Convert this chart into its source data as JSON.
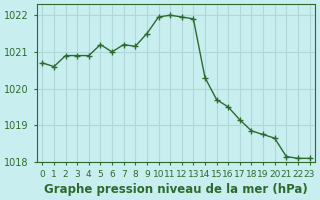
{
  "x": [
    0,
    1,
    2,
    3,
    4,
    5,
    6,
    7,
    8,
    9,
    10,
    11,
    12,
    13,
    14,
    15,
    16,
    17,
    18,
    19,
    20,
    21,
    22,
    23
  ],
  "y": [
    1020.7,
    1020.6,
    1020.9,
    1020.9,
    1020.9,
    1021.2,
    1021.0,
    1021.2,
    1021.15,
    1021.5,
    1021.95,
    1022.0,
    1021.95,
    1021.9,
    1020.3,
    1019.7,
    1019.5,
    1019.15,
    1018.85,
    1018.75,
    1018.65,
    1018.15,
    1018.1,
    1018.1
  ],
  "line_color": "#2d6a2d",
  "marker": "+",
  "marker_size": 5,
  "bg_color": "#c8eef0",
  "grid_color": "#b0d8da",
  "axis_color": "#2d6a2d",
  "xlabel": "Graphe pression niveau de la mer (hPa)",
  "ylim": [
    1018.0,
    1022.3
  ],
  "yticks": [
    1018,
    1019,
    1020,
    1021,
    1022
  ],
  "xtick_labels": [
    "0",
    "1",
    "2",
    "3",
    "4",
    "5",
    "6",
    "7",
    "8",
    "9",
    "10",
    "11",
    "12",
    "13",
    "14",
    "15",
    "16",
    "17",
    "18",
    "19",
    "20",
    "21",
    "22",
    "23"
  ],
  "xlabel_fontsize": 8.5,
  "tick_fontsize": 7
}
